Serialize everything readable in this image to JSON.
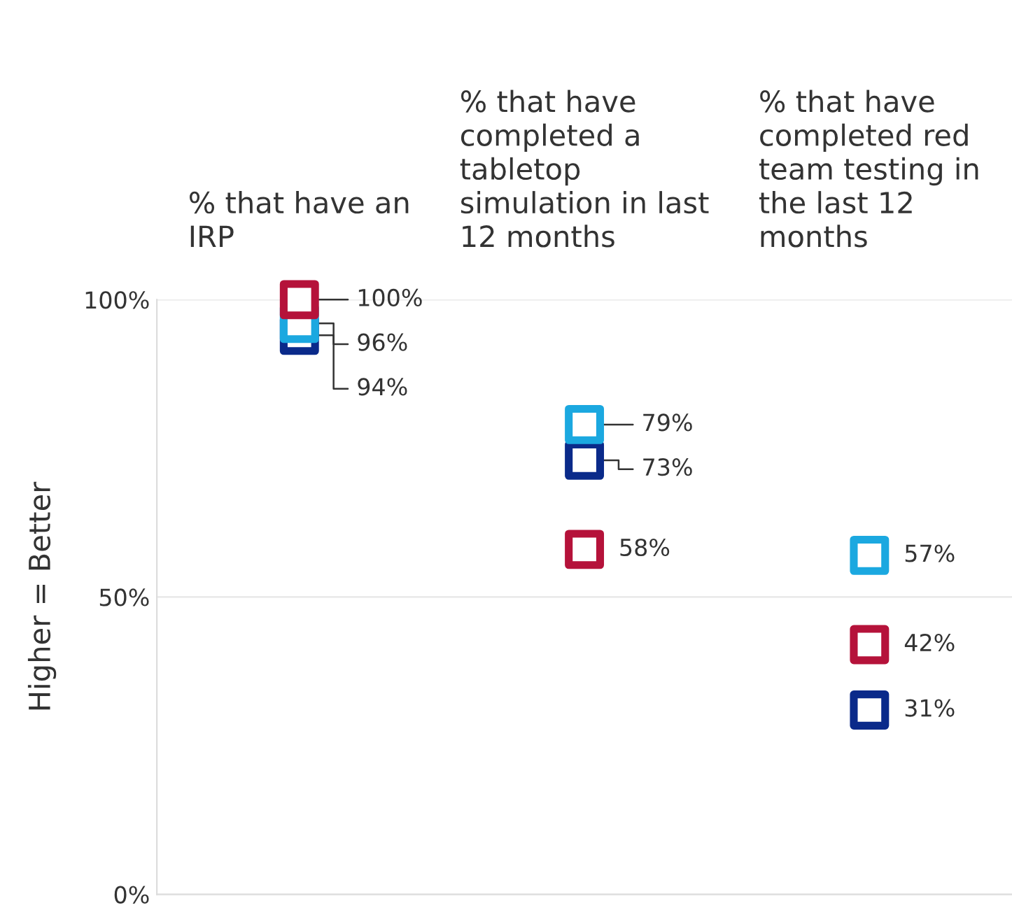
{
  "chart_data": {
    "type": "scatter",
    "ylabel": "Higher = Better",
    "categories": [
      "% that have an\nIRP",
      "% that have\ncompleted a\ntabletop\nsimulation in last\n12 months",
      "% that have\ncompleted red\nteam testing in\nthe last 12\nmonths"
    ],
    "ylim": [
      0,
      100
    ],
    "yticks": [
      {
        "value": 0,
        "label": "0%"
      },
      {
        "value": 50,
        "label": "50%"
      },
      {
        "value": 100,
        "label": "100%"
      }
    ],
    "grid": "y",
    "marker": "square",
    "legend": false,
    "series": [
      {
        "color": "#b5123a",
        "values": [
          100,
          58,
          42
        ],
        "value_labels": [
          "100%",
          "58%",
          "42%"
        ]
      },
      {
        "color": "#1ba8e0",
        "values": [
          96,
          79,
          57
        ],
        "value_labels": [
          "96%",
          "79%",
          "57%"
        ]
      },
      {
        "color": "#0a2a8a",
        "values": [
          94,
          73,
          31
        ],
        "value_labels": [
          "94%",
          "73%",
          "31%"
        ]
      }
    ]
  }
}
